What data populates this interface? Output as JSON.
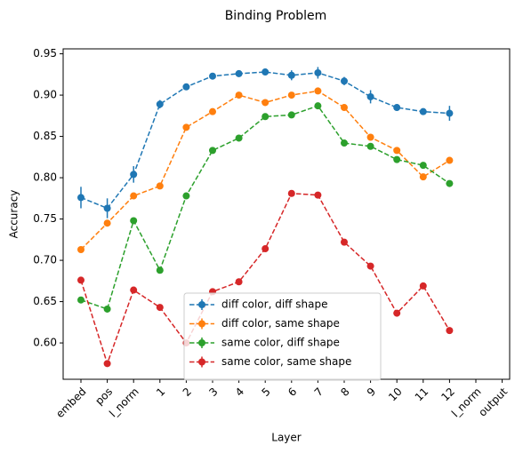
{
  "chart_data": {
    "type": "line",
    "title": "Binding Problem",
    "xlabel": "Layer",
    "ylabel": "Accuracy",
    "categories": [
      "embed",
      "pos",
      "l_norm",
      "1",
      "2",
      "3",
      "4",
      "5",
      "6",
      "7",
      "8",
      "9",
      "10",
      "11",
      "12",
      "l_norm",
      "output"
    ],
    "series": [
      {
        "name": "diff color, diff shape",
        "color": "#1f77b4",
        "values": [
          0.776,
          0.763,
          0.804,
          0.889,
          0.91,
          0.923,
          0.926,
          0.928,
          0.924,
          0.927,
          0.917,
          0.898,
          0.885,
          0.88,
          0.878,
          null,
          null
        ],
        "errors": [
          0.013,
          0.012,
          0.01,
          0.005,
          0.004,
          0.004,
          0.004,
          0.004,
          0.006,
          0.007,
          0.005,
          0.008,
          0.004,
          0.004,
          0.009,
          null,
          null
        ]
      },
      {
        "name": "diff color, same shape",
        "color": "#ff7f0e",
        "values": [
          0.713,
          0.745,
          0.778,
          0.79,
          0.861,
          0.88,
          0.9,
          0.891,
          0.9,
          0.905,
          0.885,
          0.849,
          0.833,
          0.801,
          0.821,
          null,
          null
        ],
        "errors": [
          0.003,
          0.003,
          0.003,
          0.003,
          0.003,
          0.003,
          0.003,
          0.003,
          0.003,
          0.003,
          0.003,
          0.003,
          0.003,
          0.003,
          0.003,
          null,
          null
        ]
      },
      {
        "name": "same color, diff shape",
        "color": "#2ca02c",
        "values": [
          0.652,
          0.641,
          0.748,
          0.688,
          0.778,
          0.833,
          0.848,
          0.874,
          0.876,
          0.887,
          0.842,
          0.838,
          0.822,
          0.815,
          0.793,
          null,
          null
        ],
        "errors": [
          0.003,
          0.003,
          0.003,
          0.003,
          0.003,
          0.003,
          0.003,
          0.003,
          0.003,
          0.003,
          0.003,
          0.003,
          0.003,
          0.003,
          0.003,
          null,
          null
        ]
      },
      {
        "name": "same color, same shape",
        "color": "#d62728",
        "values": [
          0.676,
          0.575,
          0.664,
          0.643,
          0.6,
          0.662,
          0.674,
          0.714,
          0.781,
          0.779,
          0.722,
          0.693,
          0.636,
          0.669,
          0.615,
          null,
          null
        ],
        "errors": [
          0.003,
          0.003,
          0.003,
          0.003,
          0.003,
          0.003,
          0.003,
          0.003,
          0.003,
          0.003,
          0.003,
          0.003,
          0.003,
          0.003,
          0.003,
          null,
          null
        ]
      }
    ],
    "ylim": [
      0.556,
      0.956
    ],
    "yticks": [
      {
        "value": 0.6,
        "label": "0.60"
      },
      0.65,
      {
        "value": 0.7,
        "label": "0.70"
      },
      0.75,
      {
        "value": 0.8,
        "label": "0.80"
      },
      0.85,
      {
        "value": 0.9,
        "label": "0.90"
      },
      0.95
    ],
    "legend": "lower center",
    "grid": false
  }
}
